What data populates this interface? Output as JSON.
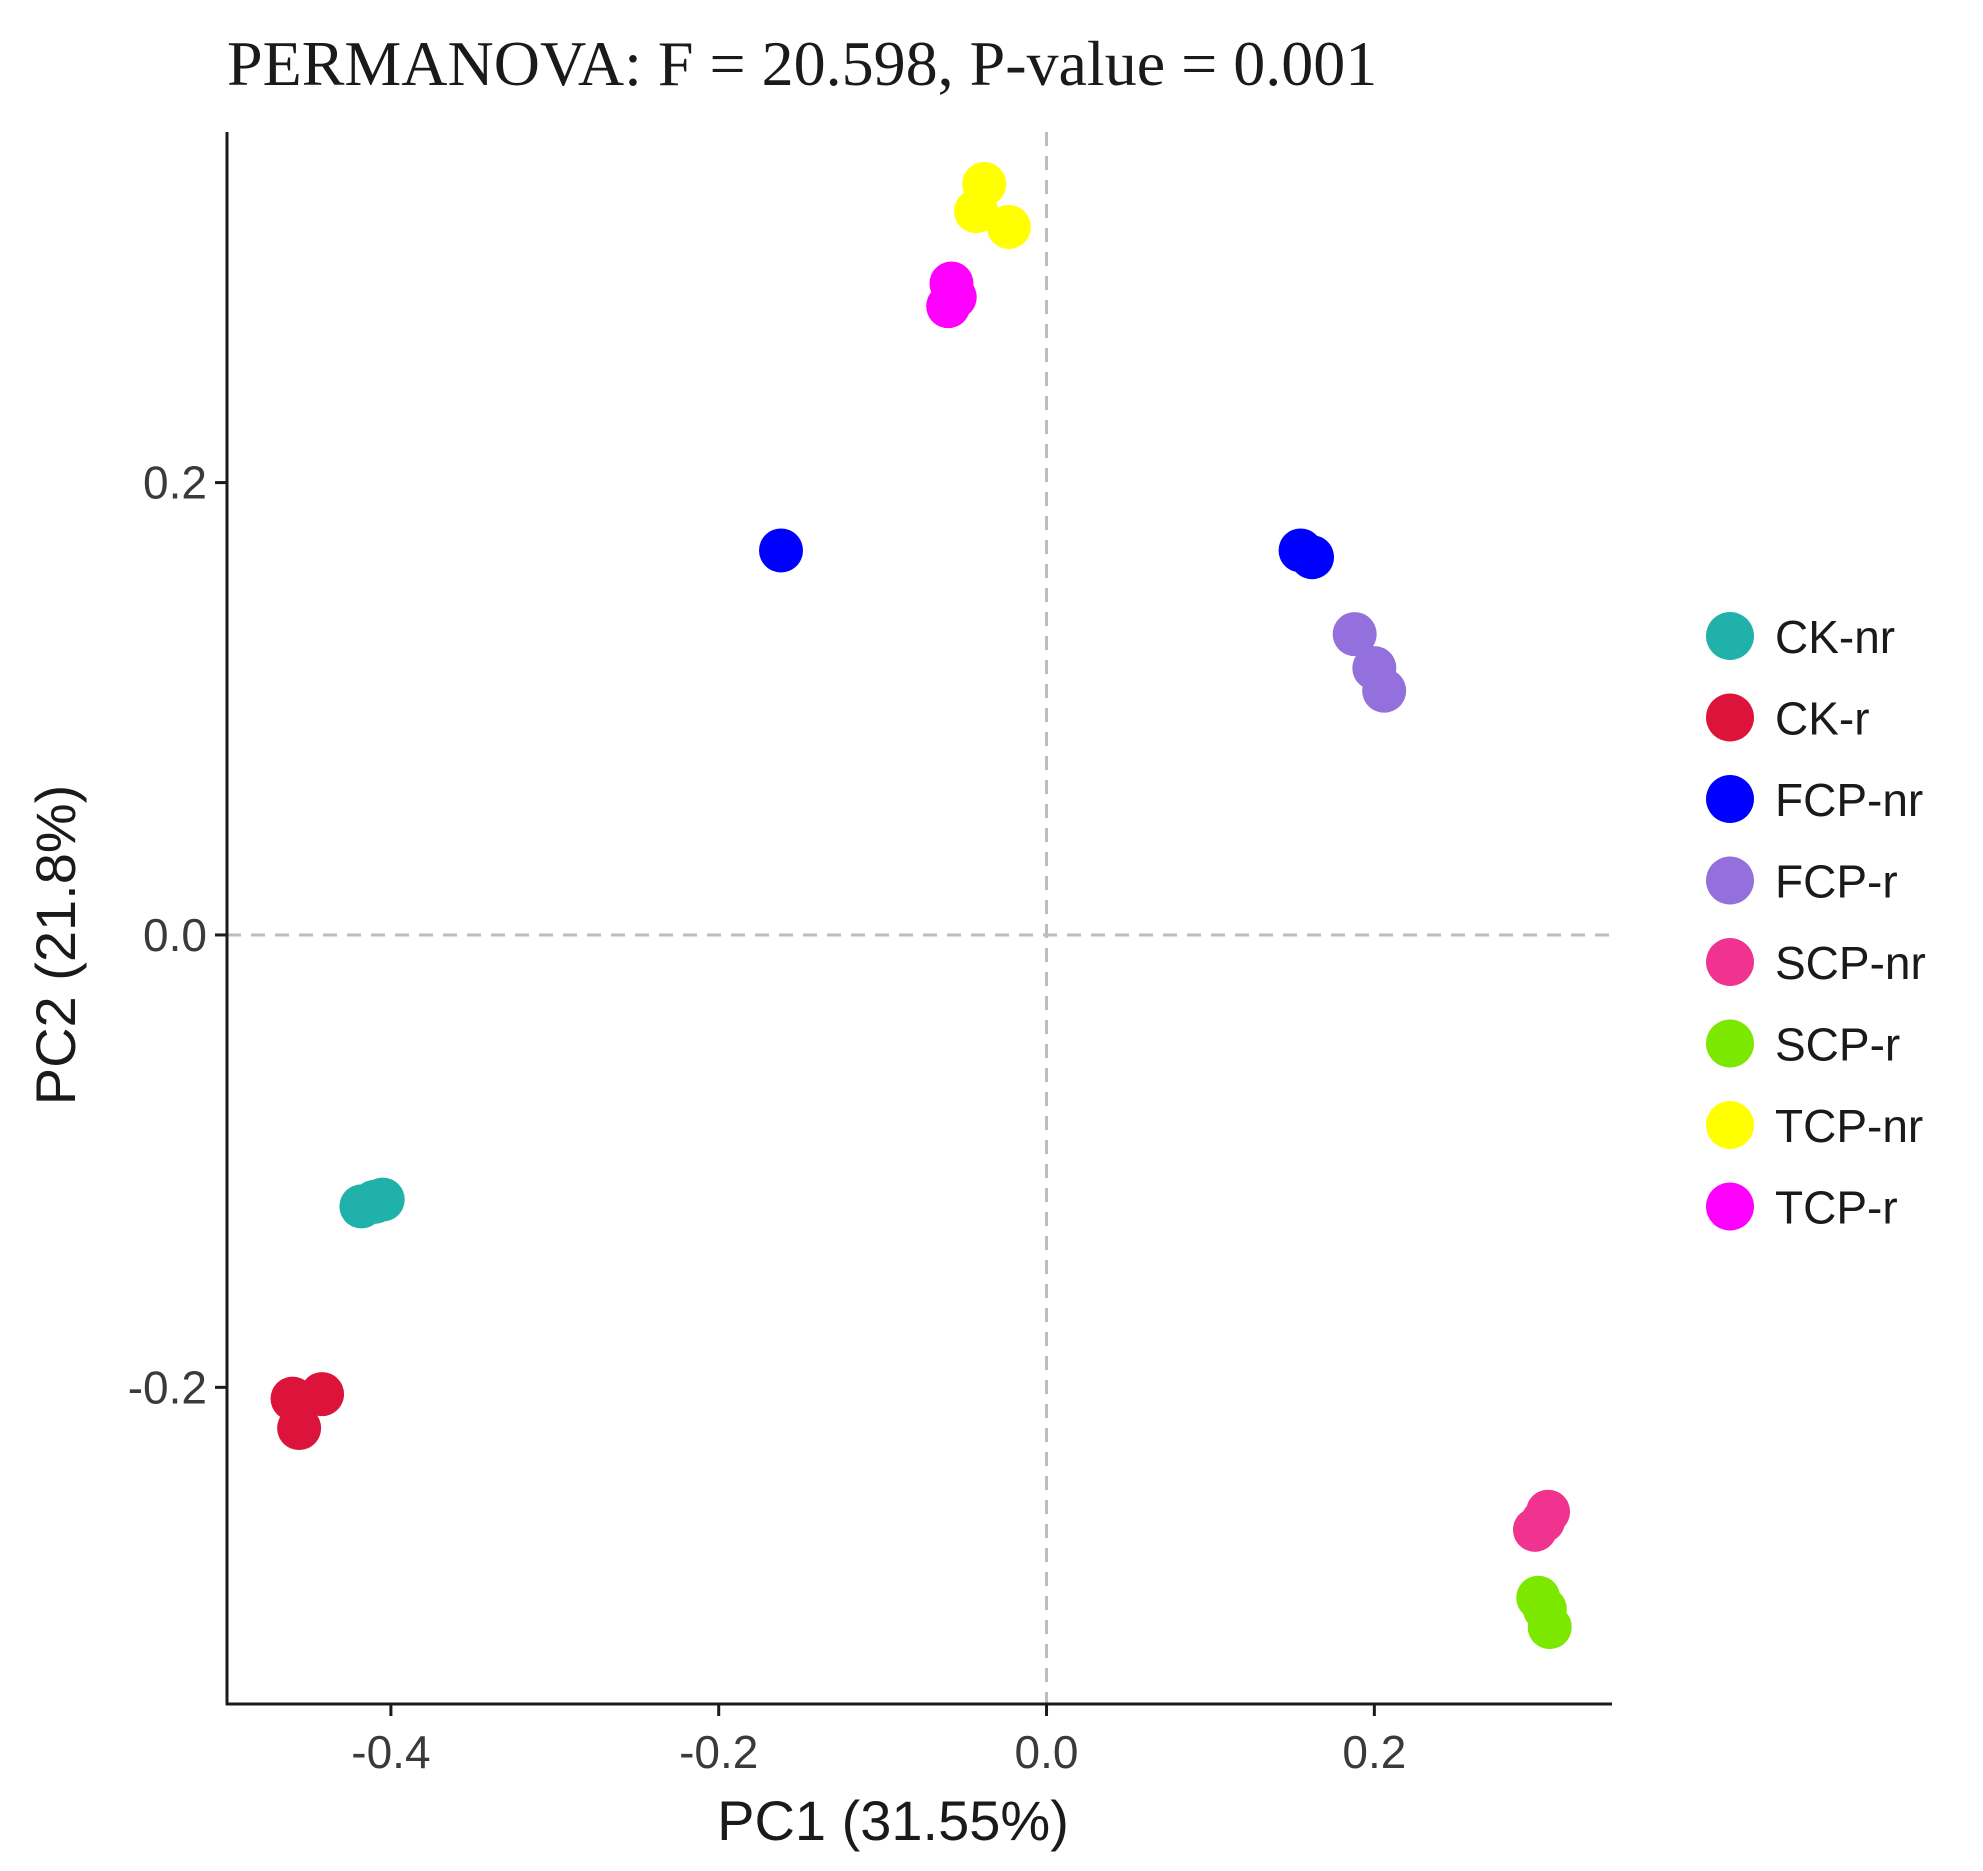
{
  "chart_data": {
    "type": "scatter",
    "title": "PERMANOVA: F = 20.598, P-value = 0.001",
    "xlabel": "PC1 (31.55%)",
    "ylabel": "PC2 (21.8%)",
    "xlim": [
      -0.5,
      0.345
    ],
    "ylim": [
      -0.34,
      0.355
    ],
    "x_ticks": [
      -0.4,
      -0.2,
      0.0,
      0.2
    ],
    "x_tick_labels": [
      "-0.4",
      "-0.2",
      "0.0",
      "0.2"
    ],
    "y_ticks": [
      -0.2,
      0.0,
      0.2
    ],
    "y_tick_labels": [
      "-0.2",
      "0.0",
      "0.2"
    ],
    "reference_lines": {
      "x": 0.0,
      "y": 0.0,
      "style": "dashed"
    },
    "legend_position": "right",
    "grid": false,
    "series": [
      {
        "name": "CK-nr",
        "color": "#20B2AA",
        "points": [
          [
            -0.418,
            -0.12
          ],
          [
            -0.41,
            -0.118
          ],
          [
            -0.405,
            -0.117
          ]
        ]
      },
      {
        "name": "CK-r",
        "color": "#DC143C",
        "points": [
          [
            -0.46,
            -0.205
          ],
          [
            -0.442,
            -0.203
          ],
          [
            -0.456,
            -0.218
          ]
        ]
      },
      {
        "name": "FCP-nr",
        "color": "#0000FF",
        "points": [
          [
            -0.162,
            0.17
          ],
          [
            0.155,
            0.17
          ],
          [
            0.162,
            0.167
          ]
        ]
      },
      {
        "name": "FCP-r",
        "color": "#9370DB",
        "points": [
          [
            0.188,
            0.133
          ],
          [
            0.2,
            0.118
          ],
          [
            0.206,
            0.108
          ]
        ]
      },
      {
        "name": "SCP-nr",
        "color": "#F0338F",
        "points": [
          [
            0.298,
            -0.263
          ],
          [
            0.303,
            -0.259
          ],
          [
            0.306,
            -0.255
          ]
        ]
      },
      {
        "name": "SCP-r",
        "color": "#7CE800",
        "points": [
          [
            0.3,
            -0.293
          ],
          [
            0.304,
            -0.298
          ],
          [
            0.307,
            -0.306
          ]
        ]
      },
      {
        "name": "TCP-nr",
        "color": "#FFFF00",
        "points": [
          [
            -0.043,
            0.32
          ],
          [
            -0.038,
            0.332
          ],
          [
            -0.023,
            0.313
          ]
        ]
      },
      {
        "name": "TCP-r",
        "color": "#FF00FF",
        "points": [
          [
            -0.06,
            0.278
          ],
          [
            -0.056,
            0.282
          ],
          [
            -0.058,
            0.288
          ]
        ]
      }
    ]
  }
}
